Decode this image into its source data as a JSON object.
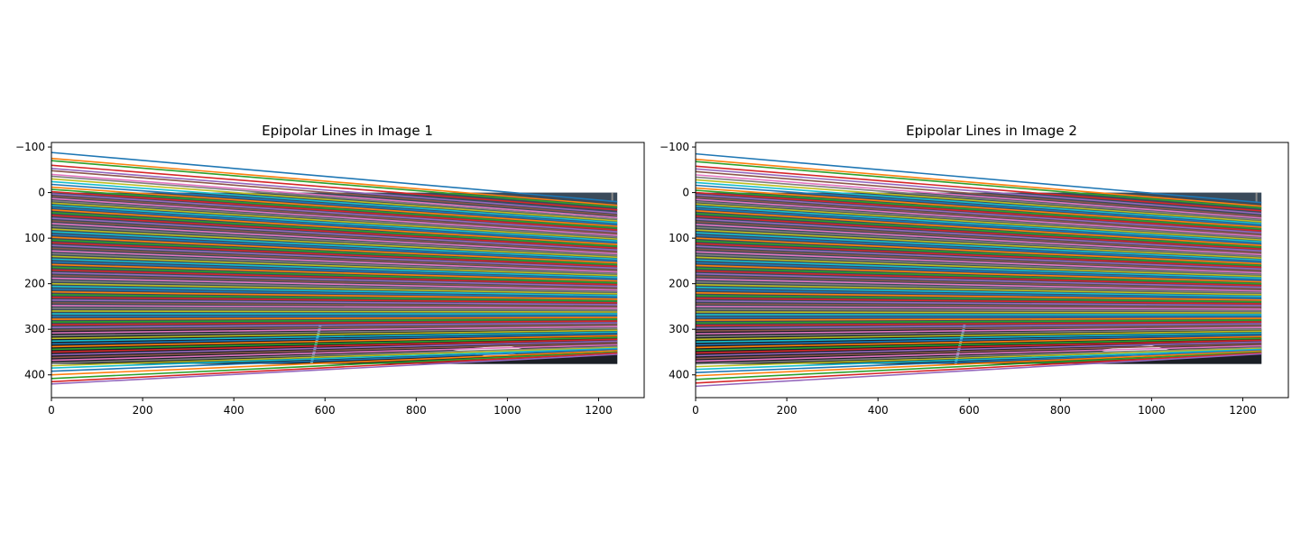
{
  "chart_data": [
    {
      "type": "line",
      "title": "Epipolar Lines in Image 1",
      "xlabel": "",
      "ylabel": "",
      "xlim": [
        0,
        1300
      ],
      "ylim": [
        450,
        -110
      ],
      "y_inverted": true,
      "xticks": [
        0,
        200,
        400,
        600,
        800,
        1000,
        1200
      ],
      "yticks": [
        -100,
        0,
        100,
        200,
        300,
        400
      ],
      "xtick_labels": [
        "0",
        "200",
        "400",
        "600",
        "800",
        "1000",
        "1200"
      ],
      "ytick_labels": [
        "−100",
        "0",
        "100",
        "200",
        "300",
        "400"
      ],
      "image_extent": {
        "x": [
          0,
          1241
        ],
        "y": [
          0,
          376
        ]
      },
      "grid": false,
      "line_x_range": [
        0,
        1241
      ],
      "line_left_y": [
        -88,
        -75,
        -70,
        -60,
        -53,
        -48,
        -40,
        -36,
        -30,
        -24,
        -18,
        -12,
        -7,
        -2,
        3,
        8,
        13,
        18,
        23,
        28,
        33,
        38,
        44,
        50,
        56,
        62,
        68,
        74,
        80,
        86,
        92,
        98,
        104,
        110,
        116,
        122,
        128,
        134,
        140,
        146,
        152,
        158,
        164,
        170,
        176,
        182,
        188,
        194,
        200,
        206,
        212,
        218,
        224,
        230,
        236,
        242,
        248,
        254,
        260,
        266,
        272,
        278,
        284,
        290,
        296,
        302,
        308,
        314,
        320,
        326,
        332,
        338,
        344,
        350,
        356,
        362,
        368,
        374,
        380,
        385,
        392,
        400,
        408,
        415,
        420
      ],
      "line_right_y": [
        20,
        28,
        32,
        38,
        45,
        50,
        55,
        58,
        62,
        66,
        70,
        74,
        78,
        82,
        86,
        90,
        94,
        98,
        102,
        106,
        110,
        114,
        118,
        122,
        126,
        130,
        134,
        138,
        142,
        146,
        150,
        154,
        158,
        162,
        166,
        170,
        174,
        178,
        182,
        186,
        190,
        194,
        198,
        202,
        206,
        210,
        214,
        218,
        222,
        226,
        230,
        234,
        238,
        242,
        246,
        250,
        254,
        258,
        262,
        266,
        270,
        274,
        278,
        282,
        286,
        290,
        294,
        298,
        302,
        306,
        310,
        314,
        318,
        322,
        326,
        330,
        334,
        338,
        340,
        342,
        344,
        347,
        350,
        352,
        355
      ]
    },
    {
      "type": "line",
      "title": "Epipolar Lines in Image 2",
      "xlabel": "",
      "ylabel": "",
      "xlim": [
        0,
        1300
      ],
      "ylim": [
        450,
        -110
      ],
      "y_inverted": true,
      "xticks": [
        0,
        200,
        400,
        600,
        800,
        1000,
        1200
      ],
      "yticks": [
        -100,
        0,
        100,
        200,
        300,
        400
      ],
      "xtick_labels": [
        "0",
        "200",
        "400",
        "600",
        "800",
        "1000",
        "1200"
      ],
      "ytick_labels": [
        "−100",
        "0",
        "100",
        "200",
        "300",
        "400"
      ],
      "image_extent": {
        "x": [
          0,
          1241
        ],
        "y": [
          0,
          376
        ]
      },
      "grid": false,
      "line_x_range": [
        0,
        1241
      ],
      "line_left_y": [
        -85,
        -73,
        -68,
        -58,
        -52,
        -46,
        -39,
        -34,
        -28,
        -22,
        -16,
        -10,
        -5,
        0,
        5,
        10,
        15,
        20,
        25,
        30,
        35,
        40,
        46,
        52,
        58,
        64,
        70,
        76,
        82,
        88,
        94,
        100,
        106,
        112,
        118,
        124,
        130,
        136,
        142,
        148,
        154,
        160,
        166,
        172,
        178,
        184,
        190,
        196,
        202,
        208,
        214,
        220,
        226,
        232,
        238,
        244,
        250,
        256,
        262,
        268,
        274,
        280,
        286,
        292,
        298,
        304,
        310,
        316,
        322,
        328,
        334,
        340,
        346,
        352,
        358,
        364,
        370,
        376,
        382,
        388,
        395,
        402,
        410,
        418,
        425
      ],
      "line_right_y": [
        22,
        30,
        34,
        40,
        46,
        52,
        56,
        60,
        64,
        68,
        72,
        76,
        80,
        84,
        88,
        92,
        96,
        100,
        104,
        108,
        112,
        116,
        120,
        124,
        128,
        132,
        136,
        140,
        144,
        148,
        152,
        156,
        160,
        164,
        168,
        172,
        176,
        180,
        184,
        188,
        192,
        196,
        200,
        204,
        208,
        212,
        216,
        220,
        224,
        228,
        232,
        236,
        240,
        244,
        248,
        252,
        256,
        260,
        264,
        268,
        272,
        276,
        280,
        284,
        288,
        292,
        296,
        300,
        304,
        308,
        312,
        316,
        320,
        324,
        328,
        332,
        336,
        340,
        342,
        344,
        346,
        348,
        350,
        352,
        354
      ]
    }
  ],
  "palette": [
    "#1f77b4",
    "#ff7f0e",
    "#2ca02c",
    "#d62728",
    "#9467bd",
    "#8c564b",
    "#e377c2",
    "#7f7f7f",
    "#bcbd22",
    "#17becf"
  ],
  "image_colors": {
    "dark": "#1b1f26",
    "mid": "#3a4a5a",
    "sky": "#ffffff",
    "accent": "#5fa8c8"
  }
}
